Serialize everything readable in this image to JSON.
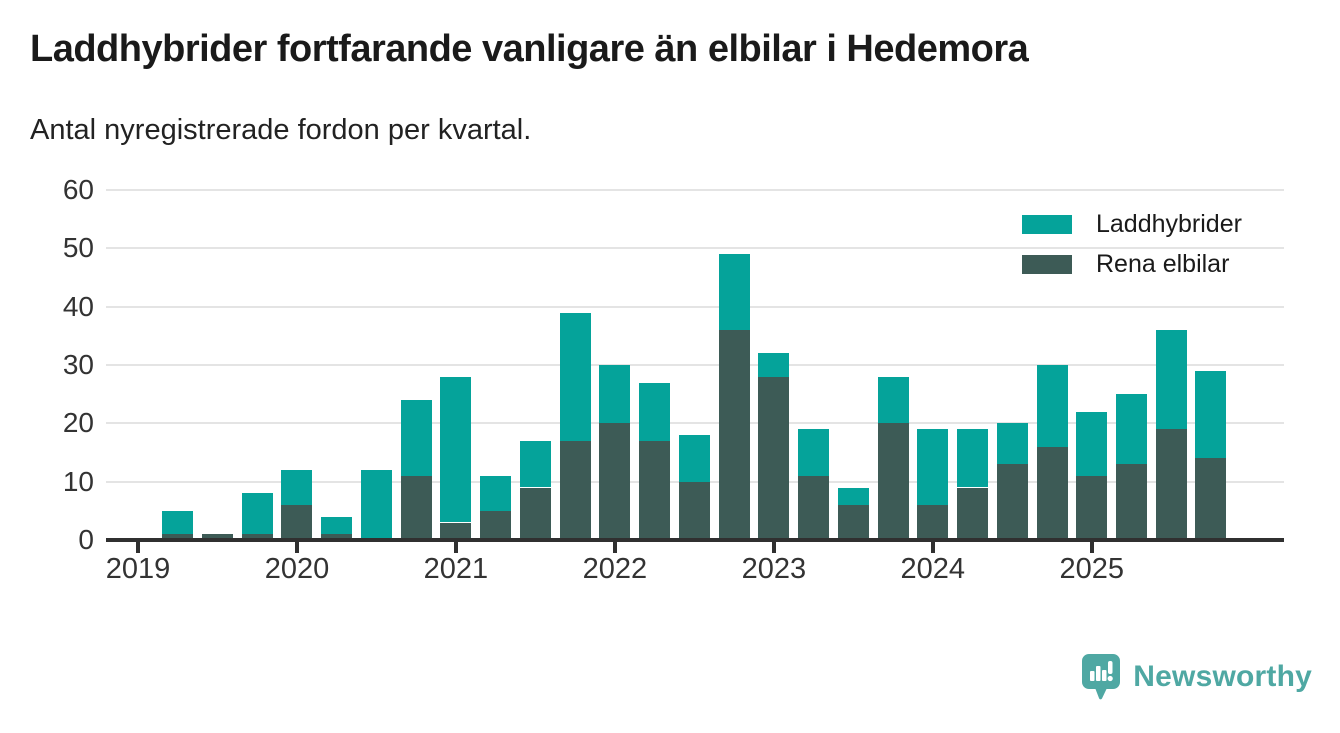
{
  "header": {
    "title": "Laddhybrider fortfarande vanligare än elbilar i Hedemora",
    "subtitle": "Antal nyregistrerade fordon per kvartal."
  },
  "legend": [
    {
      "label": "Laddhybrider",
      "color": "#05a39a"
    },
    {
      "label": "Rena elbilar",
      "color": "#3d5b56"
    }
  ],
  "footer": {
    "brand": "Newsworthy"
  },
  "colors": {
    "laddhybrider": "#05a39a",
    "rena_elbilar": "#3d5b56",
    "gridline": "#e4e4e4",
    "axis": "#303030",
    "title_text": "#1a1a1a",
    "tick_text": "#333333",
    "brand_teal": "#4fa8a3"
  },
  "chart_data": {
    "type": "bar",
    "stacked": true,
    "title": "Laddhybrider fortfarande vanligare än elbilar i Hedemora",
    "subtitle": "Antal nyregistrerade fordon per kvartal.",
    "xlabel": "",
    "ylabel": "",
    "ylim": [
      0,
      60
    ],
    "yticks": [
      0,
      10,
      20,
      30,
      40,
      50,
      60
    ],
    "grid": "horizontal",
    "legend_position": "top-right",
    "x_tick_labels": [
      "2019",
      "2020",
      "2021",
      "2022",
      "2023",
      "2024",
      "2025"
    ],
    "quarters_per_year": 4,
    "categories": [
      "2019 Q1",
      "2019 Q2",
      "2019 Q3",
      "2019 Q4",
      "2020 Q1",
      "2020 Q2",
      "2020 Q3",
      "2020 Q4",
      "2021 Q1",
      "2021 Q2",
      "2021 Q3",
      "2021 Q4",
      "2022 Q1",
      "2022 Q2",
      "2022 Q3",
      "2022 Q4",
      "2023 Q1",
      "2023 Q2",
      "2023 Q3",
      "2023 Q4",
      "2024 Q1",
      "2024 Q2",
      "2024 Q3",
      "2024 Q4",
      "2025 Q1",
      "2025 Q2",
      "2025 Q3",
      "2025 Q4"
    ],
    "stack_order_bottom_to_top": [
      "Rena elbilar",
      "Laddhybrider"
    ],
    "series": [
      {
        "name": "Laddhybrider",
        "color": "#05a39a",
        "values": [
          0,
          4,
          0,
          7,
          6,
          3,
          12,
          13,
          25,
          6,
          8,
          22,
          10,
          10,
          8,
          13,
          4,
          8,
          3,
          8,
          13,
          10,
          7,
          14,
          11,
          12,
          17,
          15
        ]
      },
      {
        "name": "Rena elbilar",
        "color": "#3d5b56",
        "values": [
          0,
          1,
          1,
          1,
          6,
          1,
          0,
          11,
          3,
          5,
          9,
          17,
          20,
          17,
          10,
          36,
          28,
          11,
          6,
          20,
          6,
          9,
          13,
          16,
          11,
          13,
          19,
          14
        ]
      }
    ],
    "totals": [
      0,
      5,
      1,
      8,
      12,
      4,
      12,
      24,
      28,
      11,
      17,
      39,
      30,
      27,
      18,
      49,
      32,
      19,
      9,
      28,
      19,
      19,
      20,
      30,
      22,
      25,
      36,
      29
    ]
  }
}
